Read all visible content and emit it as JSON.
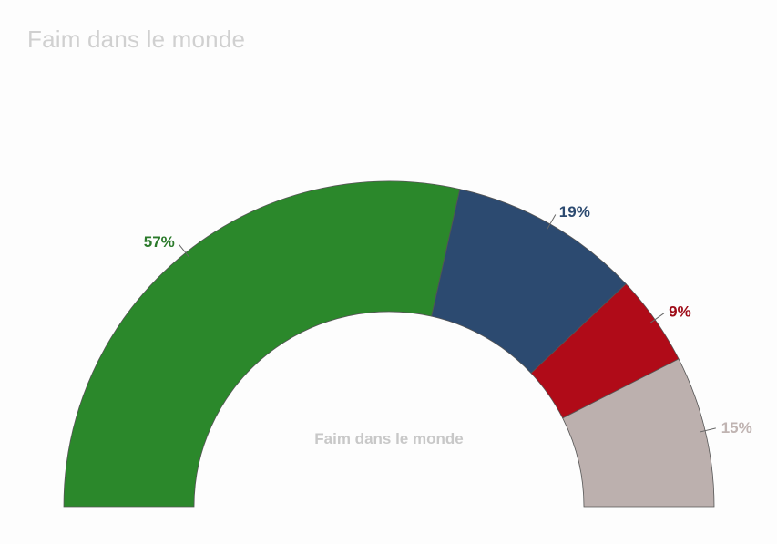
{
  "chart_data": {
    "type": "pie",
    "variant": "semi-donut",
    "title": "Faim dans le monde",
    "center_label": "Faim dans le monde",
    "categories": [
      "",
      "",
      "",
      ""
    ],
    "values": [
      57,
      19,
      9,
      15
    ],
    "labels": [
      "57%",
      "19%",
      "9%",
      "15%"
    ],
    "colors": [
      "#2b882b",
      "#2c4a70",
      "#b00b18",
      "#bcb0ae"
    ],
    "label_colors": [
      "#2b7a2b",
      "#2c4a70",
      "#9e0a16",
      "#c0b4b2"
    ]
  }
}
